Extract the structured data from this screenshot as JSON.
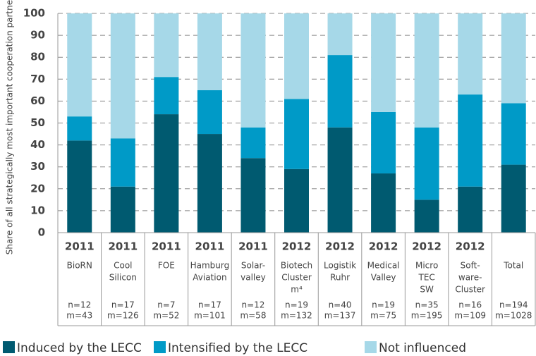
{
  "chart_data": {
    "type": "stacked_bar",
    "y_label": "Share of all strategically most important cooperation partners",
    "categories": [
      {
        "year": "2011",
        "name": [
          "BioRN"
        ],
        "n": "n=12",
        "m": "m=43"
      },
      {
        "year": "2011",
        "name": [
          "Cool",
          "Silicon"
        ],
        "n": "n=17",
        "m": "m=126"
      },
      {
        "year": "2011",
        "name": [
          "FOE"
        ],
        "n": "n=7",
        "m": "m=52"
      },
      {
        "year": "2011",
        "name": [
          "Hamburg",
          "Aviation"
        ],
        "n": "n=17",
        "m": "m=101"
      },
      {
        "year": "2011",
        "name": [
          "Solar-",
          "valley"
        ],
        "n": "n=12",
        "m": "m=58"
      },
      {
        "year": "2012",
        "name": [
          "Biotech",
          "Cluster",
          "m⁴"
        ],
        "n": "n=19",
        "m": "m=132"
      },
      {
        "year": "2012",
        "name": [
          "Logistik",
          "Ruhr"
        ],
        "n": "n=40",
        "m": "m=137"
      },
      {
        "year": "2012",
        "name": [
          "Medical",
          "Valley"
        ],
        "n": "n=19",
        "m": "m=75"
      },
      {
        "year": "2012",
        "name": [
          "Micro",
          "TEC",
          "SW"
        ],
        "n": "n=35",
        "m": "m=195"
      },
      {
        "year": "2012",
        "name": [
          "Soft-",
          "ware-",
          "Cluster"
        ],
        "n": "n=16",
        "m": "m=109"
      },
      {
        "year": null,
        "name": [
          "Total"
        ],
        "n": "n=194",
        "m": "m=1028"
      }
    ],
    "series": [
      {
        "name": "Induced by the LECC",
        "color": "#005a70",
        "values": [
          42,
          21,
          54,
          45,
          34,
          29,
          48,
          27,
          15,
          21,
          31
        ]
      },
      {
        "name": "Intensified by the LECC",
        "color": "#009ac7",
        "values": [
          11,
          22,
          17,
          20,
          14,
          32,
          33,
          28,
          33,
          42,
          28
        ]
      },
      {
        "name": "Not influenced",
        "color": "#a6d8e8",
        "values": [
          47,
          57,
          29,
          35,
          52,
          39,
          19,
          45,
          52,
          37,
          41
        ]
      }
    ],
    "ylim": [
      0,
      100
    ],
    "yticks": [
      0,
      10,
      20,
      30,
      40,
      50,
      60,
      70,
      80,
      90,
      100
    ],
    "grid": true
  }
}
